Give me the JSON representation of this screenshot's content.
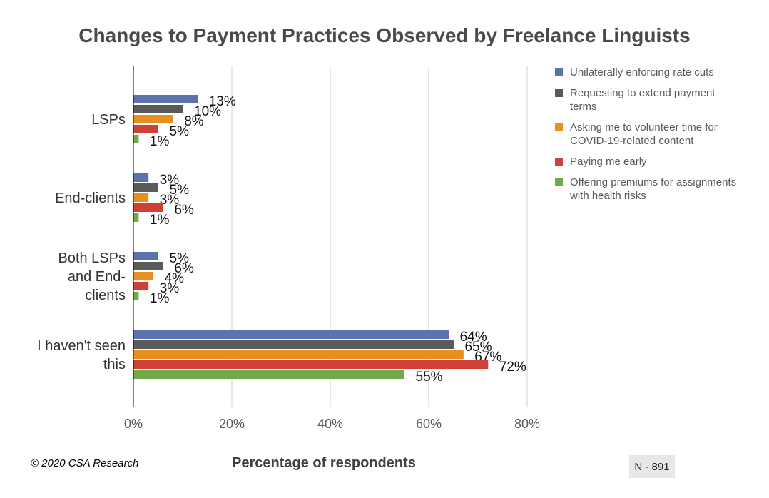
{
  "chart_data": {
    "type": "bar",
    "orientation": "horizontal",
    "title": "Changes to Payment Practices Observed by Freelance Linguists",
    "xlabel": "Percentage of respondents",
    "ylabel": "",
    "xlim": [
      0,
      80
    ],
    "x_ticks": [
      "0%",
      "20%",
      "40%",
      "60%",
      "80%"
    ],
    "x_tick_values": [
      0,
      20,
      40,
      60,
      80
    ],
    "grid": true,
    "legend_position": "right",
    "categories": [
      [
        "LSPs"
      ],
      [
        "End-clients"
      ],
      [
        "Both LSPs",
        "and End-",
        "clients"
      ],
      [
        "I haven't seen",
        "this"
      ]
    ],
    "series": [
      {
        "name": "Unilaterally enforcing rate cuts",
        "color": "#5b72ad",
        "values": [
          13,
          3,
          5,
          64
        ],
        "labels": [
          "13%",
          "3%",
          "5%",
          "64%"
        ]
      },
      {
        "name": "Requesting to extend payment terms",
        "color": "#5a5a5a",
        "values": [
          10,
          5,
          6,
          65
        ],
        "labels": [
          "10%",
          "5%",
          "6%",
          "65%"
        ]
      },
      {
        "name": "Asking me to volunteer time for COVID-19-related content",
        "color": "#e8901f",
        "values": [
          8,
          3,
          4,
          67
        ],
        "labels": [
          "8%",
          "3%",
          "4%",
          "67%"
        ]
      },
      {
        "name": "Paying me early",
        "color": "#cf4036",
        "values": [
          5,
          6,
          3,
          72
        ],
        "labels": [
          "5%",
          "6%",
          "3%",
          "72%"
        ]
      },
      {
        "name": "Offering premiums for assignments with health risks",
        "color": "#72aa4b",
        "values": [
          1,
          1,
          1,
          55
        ],
        "labels": [
          "1%",
          "1%",
          "1%",
          "55%"
        ]
      }
    ]
  },
  "footer": {
    "copyright": "© 2020 CSA Research",
    "sample_size": "N - 891"
  }
}
